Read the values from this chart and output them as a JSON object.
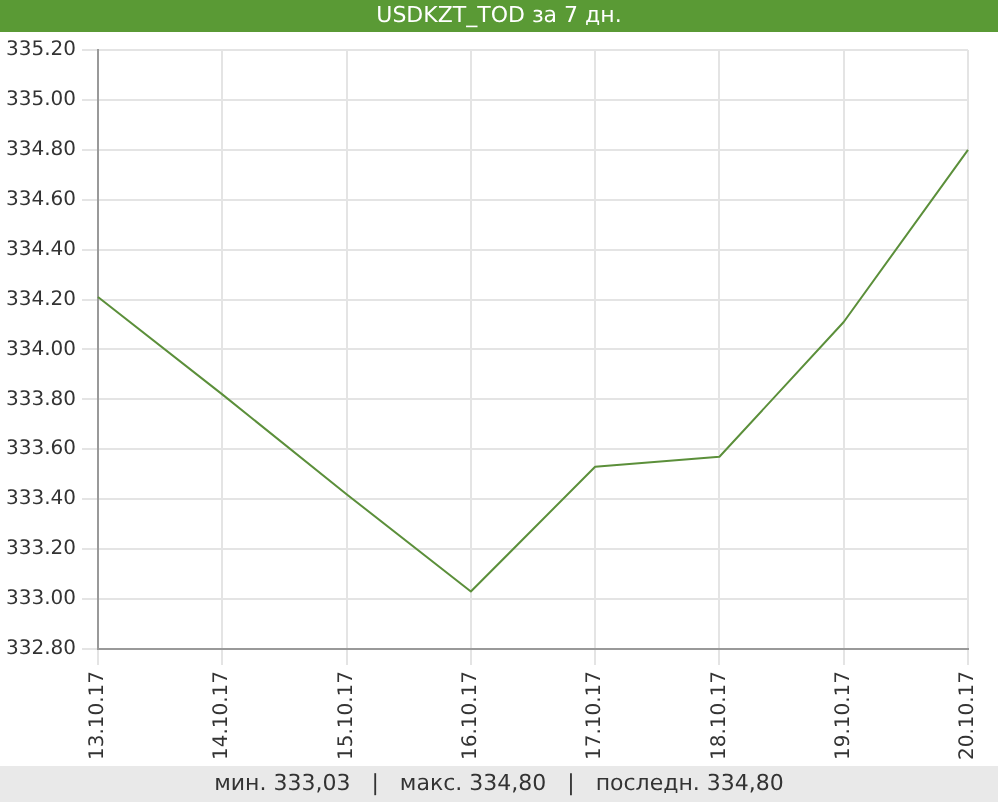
{
  "chart_data": {
    "type": "line",
    "title": "USDKZT_TOD за 7 дн.",
    "categories": [
      "13.10.17",
      "14.10.17",
      "15.10.17",
      "16.10.17",
      "17.10.17",
      "18.10.17",
      "19.10.17",
      "20.10.17"
    ],
    "series": [
      {
        "color": "#5b8f3a",
        "values": [
          334.21,
          333.82,
          333.42,
          333.03,
          333.53,
          333.57,
          334.11,
          334.8
        ]
      }
    ],
    "ylim": [
      332.8,
      335.2
    ],
    "yticks": [
      {
        "value": 332.8,
        "label": "332.80"
      },
      {
        "value": 333,
        "label": "333.00"
      },
      {
        "value": 333.2,
        "label": "333.20"
      },
      {
        "value": 333.4,
        "label": "333.40"
      },
      {
        "value": 333.6,
        "label": "333.60"
      },
      {
        "value": 333.8,
        "label": "333.80"
      },
      {
        "value": 334,
        "label": "334.00"
      },
      {
        "value": 334.2,
        "label": "334.20"
      },
      {
        "value": 334.4,
        "label": "334.40"
      },
      {
        "value": 334.6,
        "label": "334.60"
      },
      {
        "value": 334.8,
        "label": "334.80"
      },
      {
        "value": 335,
        "label": "335.00"
      },
      {
        "value": 335.2,
        "label": "335.20"
      }
    ],
    "grid": true,
    "marker": "none",
    "line_style": "solid",
    "annotations": [
      "мин. 333,03   |   макс. 334,80   |   последн. 334,80"
    ]
  }
}
